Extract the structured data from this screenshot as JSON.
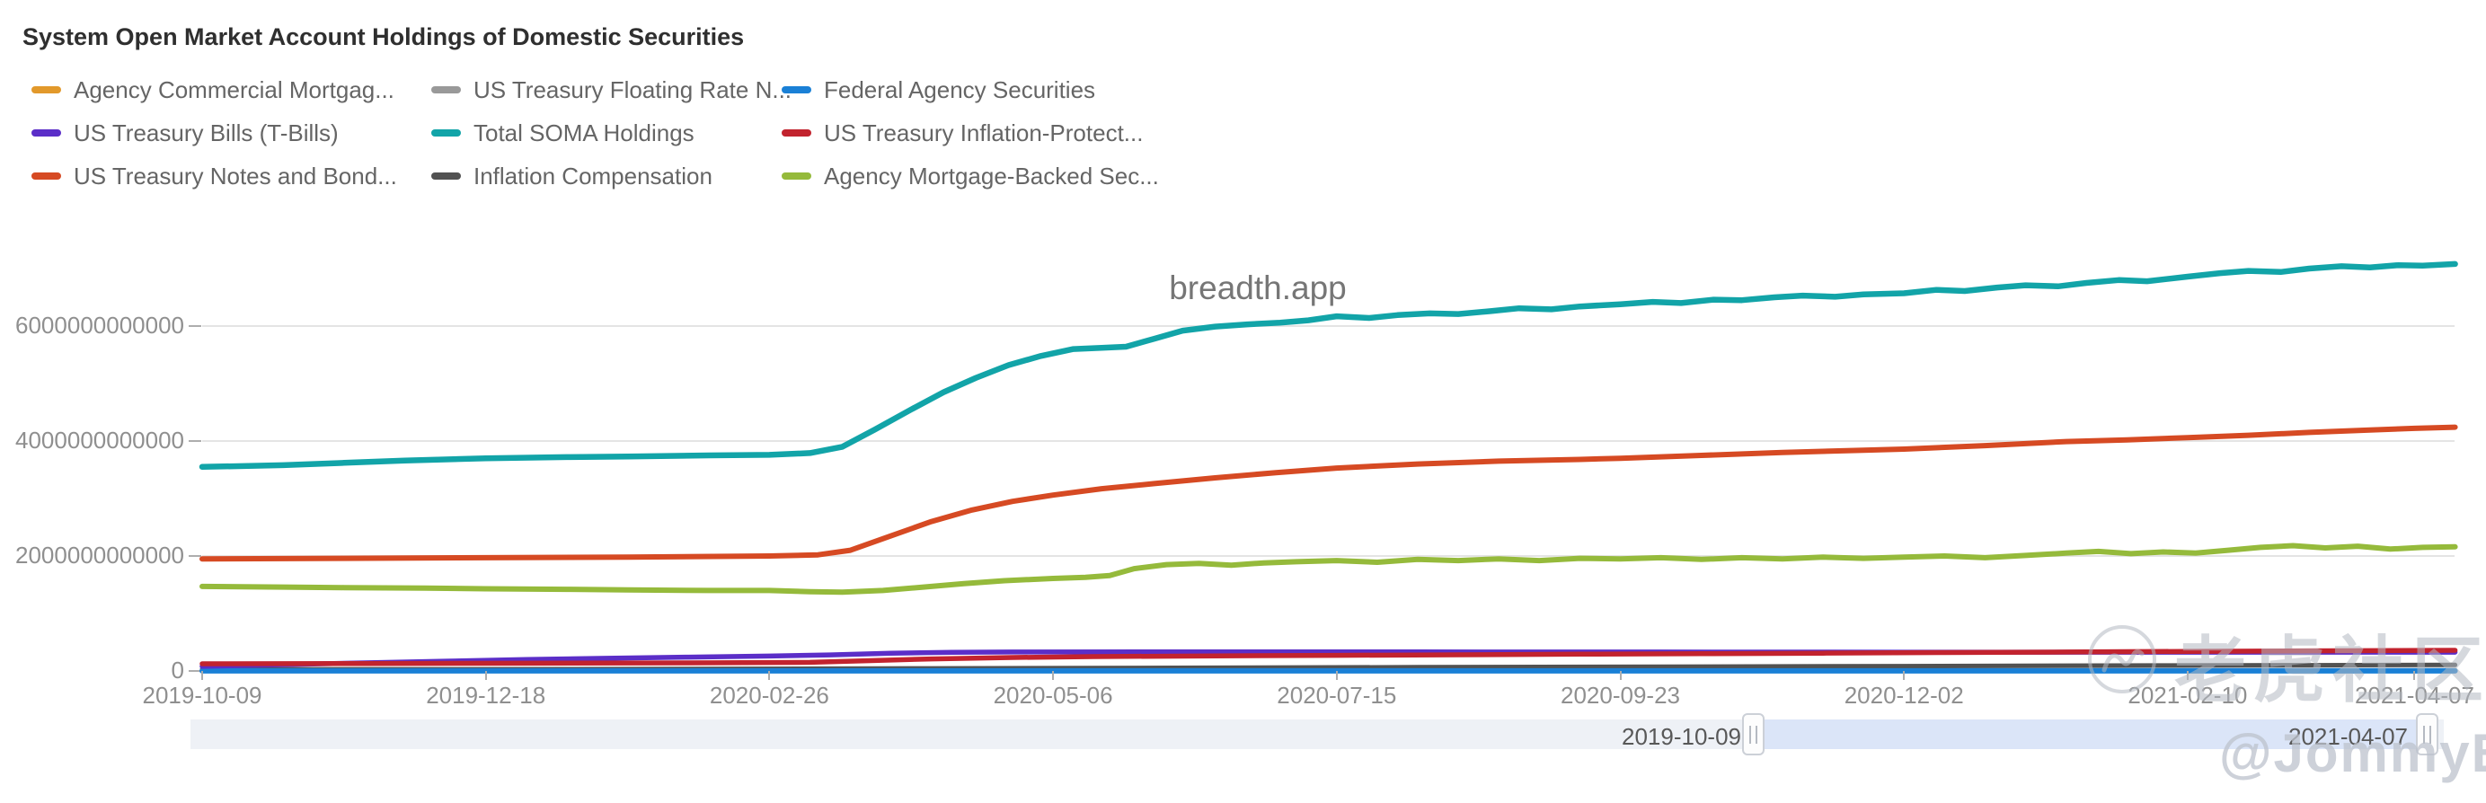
{
  "title": "System Open Market Account Holdings of Domestic Securities",
  "watermarks": {
    "center": "breadth.app",
    "brand": "老虎社区",
    "user": "@JommyB"
  },
  "legend": {
    "items": [
      {
        "label": "Agency Commercial Mortgag...",
        "color": "#e2992b"
      },
      {
        "label": "US Treasury Bills (T-Bills)",
        "color": "#5b2ec8"
      },
      {
        "label": "US Treasury Notes and Bond...",
        "color": "#d64a23"
      },
      {
        "label": "US Treasury Floating Rate N...",
        "color": "#999999"
      },
      {
        "label": "Total SOMA Holdings",
        "color": "#12a4a8"
      },
      {
        "label": "Inflation Compensation",
        "color": "#525252"
      },
      {
        "label": "Federal Agency Securities",
        "color": "#1a80d6"
      },
      {
        "label": "US Treasury Inflation-Protect...",
        "color": "#c2232e"
      },
      {
        "label": "Agency Mortgage-Backed Sec...",
        "color": "#95ba3b"
      }
    ]
  },
  "chart_data": {
    "type": "line",
    "title": "System Open Market Account Holdings of Domestic Securities",
    "grid": true,
    "legend_position": "top-left",
    "x_axis": {
      "ticks": [
        "2019-10-09",
        "2019-12-18",
        "2020-02-26",
        "2020-05-06",
        "2020-07-15",
        "2020-09-23",
        "2020-12-02",
        "2021-02-10",
        "2021-04-07"
      ],
      "tick_days": [
        0,
        70,
        140,
        210,
        280,
        350,
        420,
        490,
        546
      ]
    },
    "y_axis": {
      "ticks": [
        "0",
        "2000000000000",
        "4000000000000",
        "6000000000000"
      ],
      "tick_values_trillions": [
        0,
        2,
        4,
        6
      ],
      "ylim_trillions": [
        0,
        7.5
      ]
    },
    "units": "USD, values expressed in trillions",
    "series": [
      {
        "name": "US Treasury Floating Rate N...",
        "color": "#999999",
        "width": 4,
        "x_days": [
          0,
          140,
          280,
          420,
          556
        ],
        "values_usd_trillions": [
          0.018,
          0.019,
          0.02,
          0.021,
          0.021
        ]
      },
      {
        "name": "Agency Commercial Mortgag...",
        "color": "#e2992b",
        "width": 4,
        "x_days": [
          0,
          150,
          200,
          250,
          556
        ],
        "values_usd_trillions": [
          0.0,
          0.0,
          0.004,
          0.007,
          0.009
        ]
      },
      {
        "name": "Inflation Compensation",
        "color": "#525252",
        "width": 5,
        "x_days": [
          0,
          60,
          120,
          180,
          240,
          300,
          360,
          420,
          480,
          520,
          556
        ],
        "values_usd_trillions": [
          0.028,
          0.03,
          0.035,
          0.045,
          0.055,
          0.065,
          0.075,
          0.085,
          0.095,
          0.1,
          0.105
        ]
      },
      {
        "name": "Federal Agency Securities",
        "color": "#1a80d6",
        "width": 6,
        "x_days": [
          0,
          556
        ],
        "values_usd_trillions": [
          0.002,
          0.002
        ]
      },
      {
        "name": "US Treasury Bills (T-Bills)",
        "color": "#5b2ec8",
        "width": 5.5,
        "x_days": [
          0,
          20,
          40,
          60,
          80,
          100,
          120,
          140,
          155,
          170,
          185,
          200,
          240,
          300,
          360,
          420,
          480,
          520,
          556
        ],
        "values_usd_trillions": [
          0.08,
          0.11,
          0.14,
          0.17,
          0.2,
          0.22,
          0.24,
          0.26,
          0.28,
          0.31,
          0.325,
          0.33,
          0.333,
          0.331,
          0.329,
          0.327,
          0.326,
          0.326,
          0.326
        ]
      },
      {
        "name": "US Treasury Inflation-Protect...",
        "color": "#c2232e",
        "width": 5.5,
        "x_days": [
          0,
          40,
          80,
          120,
          150,
          165,
          180,
          200,
          220,
          250,
          280,
          310,
          340,
          370,
          400,
          430,
          460,
          490,
          520,
          556
        ],
        "values_usd_trillions": [
          0.125,
          0.13,
          0.135,
          0.14,
          0.15,
          0.18,
          0.21,
          0.235,
          0.25,
          0.262,
          0.272,
          0.282,
          0.292,
          0.3,
          0.31,
          0.32,
          0.33,
          0.34,
          0.35,
          0.36
        ]
      },
      {
        "name": "Agency Mortgage-Backed Sec...",
        "color": "#95ba3b",
        "width": 6,
        "x_days": [
          0,
          20,
          35,
          55,
          70,
          90,
          105,
          125,
          140,
          150,
          158,
          168,
          178,
          188,
          198,
          210,
          218,
          224,
          230,
          238,
          246,
          254,
          262,
          270,
          280,
          290,
          300,
          310,
          320,
          330,
          340,
          350,
          360,
          370,
          380,
          390,
          400,
          410,
          420,
          430,
          440,
          450,
          460,
          468,
          476,
          484,
          492,
          500,
          508,
          516,
          524,
          532,
          540,
          548,
          556
        ],
        "values_usd_trillions": [
          1.47,
          1.46,
          1.45,
          1.44,
          1.43,
          1.42,
          1.41,
          1.4,
          1.4,
          1.38,
          1.37,
          1.4,
          1.46,
          1.52,
          1.57,
          1.61,
          1.63,
          1.66,
          1.78,
          1.85,
          1.87,
          1.84,
          1.88,
          1.9,
          1.92,
          1.89,
          1.94,
          1.92,
          1.95,
          1.92,
          1.96,
          1.95,
          1.97,
          1.94,
          1.97,
          1.95,
          1.98,
          1.96,
          1.98,
          2.0,
          1.97,
          2.01,
          2.05,
          2.08,
          2.04,
          2.07,
          2.05,
          2.1,
          2.15,
          2.18,
          2.14,
          2.17,
          2.12,
          2.15,
          2.16
        ]
      },
      {
        "name": "US Treasury Notes and Bond...",
        "color": "#d64a23",
        "width": 6,
        "x_days": [
          0,
          35,
          70,
          105,
          140,
          152,
          160,
          170,
          180,
          190,
          200,
          210,
          222,
          235,
          250,
          265,
          280,
          300,
          320,
          340,
          350,
          370,
          390,
          410,
          420,
          440,
          460,
          475,
          490,
          505,
          520,
          535,
          546,
          556
        ],
        "values_usd_trillions": [
          1.95,
          1.96,
          1.97,
          1.98,
          2.0,
          2.02,
          2.1,
          2.35,
          2.6,
          2.8,
          2.95,
          3.06,
          3.17,
          3.26,
          3.36,
          3.45,
          3.53,
          3.6,
          3.65,
          3.68,
          3.7,
          3.75,
          3.8,
          3.84,
          3.86,
          3.92,
          3.99,
          4.02,
          4.06,
          4.1,
          4.15,
          4.19,
          4.22,
          4.24
        ]
      },
      {
        "name": "Total SOMA Holdings",
        "color": "#12a4a8",
        "width": 6.5,
        "x_days": [
          0,
          20,
          35,
          50,
          70,
          90,
          105,
          125,
          140,
          150,
          158,
          166,
          175,
          183,
          191,
          199,
          207,
          215,
          222,
          228,
          235,
          242,
          250,
          258,
          266,
          273,
          280,
          288,
          295,
          303,
          310,
          318,
          325,
          333,
          340,
          350,
          358,
          365,
          373,
          380,
          388,
          395,
          403,
          410,
          420,
          428,
          435,
          443,
          450,
          458,
          465,
          473,
          480,
          490,
          498,
          505,
          513,
          520,
          528,
          535,
          542,
          548,
          556
        ],
        "values_usd_trillions": [
          3.55,
          3.58,
          3.62,
          3.66,
          3.7,
          3.72,
          3.73,
          3.75,
          3.76,
          3.79,
          3.9,
          4.2,
          4.55,
          4.85,
          5.1,
          5.32,
          5.48,
          5.6,
          5.62,
          5.64,
          5.78,
          5.92,
          5.99,
          6.03,
          6.06,
          6.1,
          6.17,
          6.14,
          6.19,
          6.22,
          6.21,
          6.26,
          6.31,
          6.29,
          6.34,
          6.38,
          6.42,
          6.4,
          6.46,
          6.45,
          6.5,
          6.53,
          6.51,
          6.55,
          6.57,
          6.63,
          6.61,
          6.67,
          6.71,
          6.69,
          6.75,
          6.8,
          6.78,
          6.86,
          6.92,
          6.96,
          6.94,
          7.0,
          7.04,
          7.02,
          7.06,
          7.05,
          7.08
        ]
      }
    ]
  },
  "slider": {
    "start_label": "2019-10-09",
    "end_label": "2021-04-07"
  }
}
